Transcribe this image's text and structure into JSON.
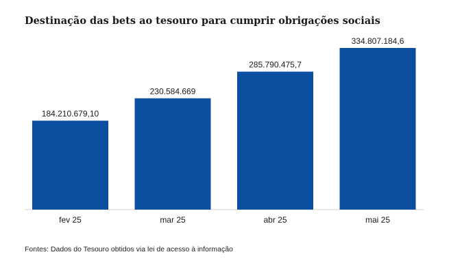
{
  "chart_data": {
    "type": "bar",
    "title": "Destinação das bets ao tesouro para cumprir obrigações sociais",
    "categories": [
      "fev 25",
      "mar 25",
      "abr 25",
      "mai 25"
    ],
    "values": [
      184210679.1,
      230584669,
      285790475.7,
      334807184.6
    ],
    "data_labels": [
      "184.210.679,10",
      "230.584.669",
      "285.790.475,7",
      "334.807.184,6"
    ],
    "xlabel": "",
    "ylabel": "",
    "ylim": [
      0,
      334807184.6
    ],
    "grid": false,
    "legend": "none",
    "bar_color": "#0a4fa0",
    "source": "Fontes: Dados do Tesouro obtidos via lei de acesso à informação"
  }
}
